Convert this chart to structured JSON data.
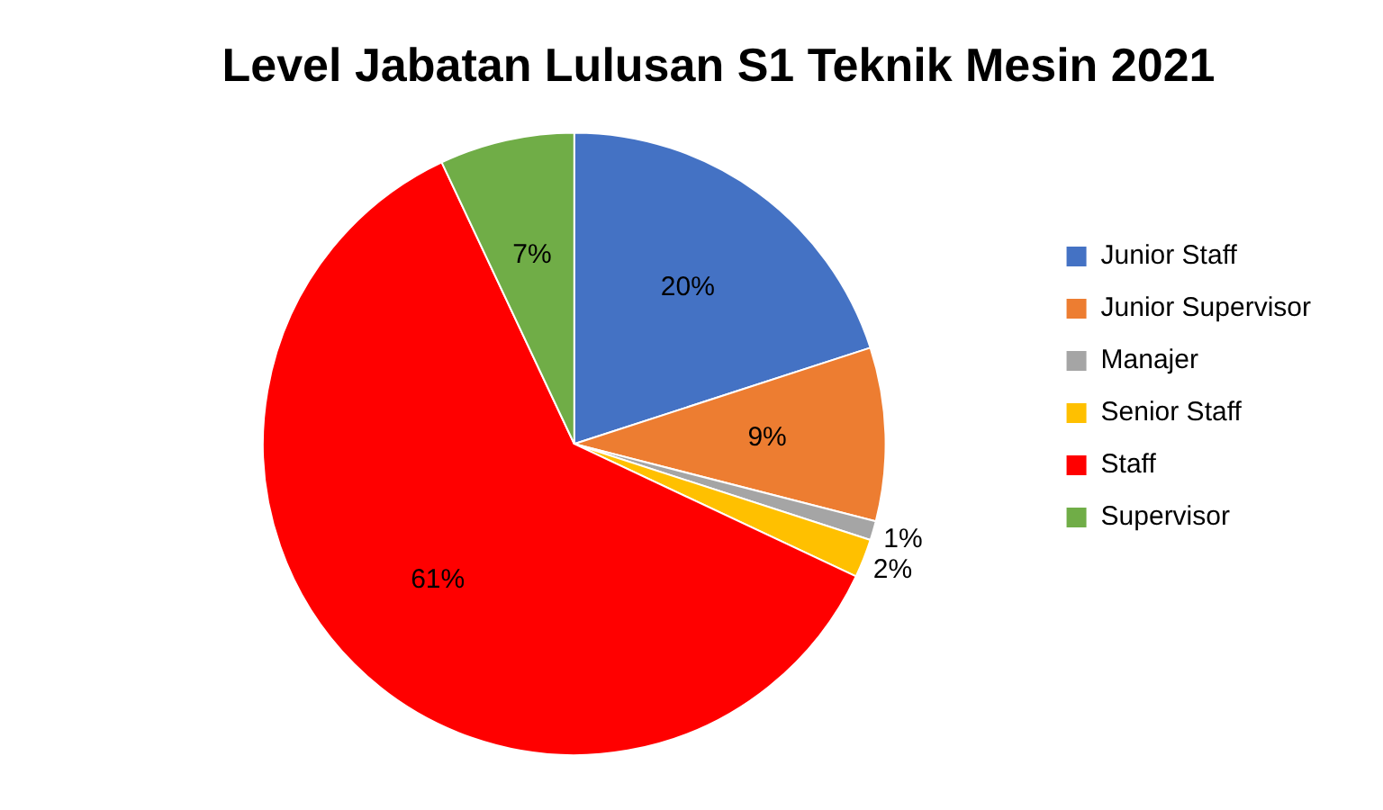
{
  "chart_data": {
    "type": "pie",
    "title": "Level Jabatan Lulusan S1 Teknik Mesin 2021",
    "categories": [
      "Junior Staff",
      "Junior Supervisor",
      "Manajer",
      "Senior Staff",
      "Staff",
      "Supervisor"
    ],
    "values": [
      20,
      9,
      1,
      2,
      61,
      7
    ],
    "colors": [
      "#4472c4",
      "#ed7d31",
      "#a5a5a5",
      "#ffc000",
      "#ff0000",
      "#70ad47"
    ],
    "value_labels": [
      "20%",
      "9%",
      "1%",
      "2%",
      "61%",
      "7%"
    ],
    "legend": "right"
  }
}
